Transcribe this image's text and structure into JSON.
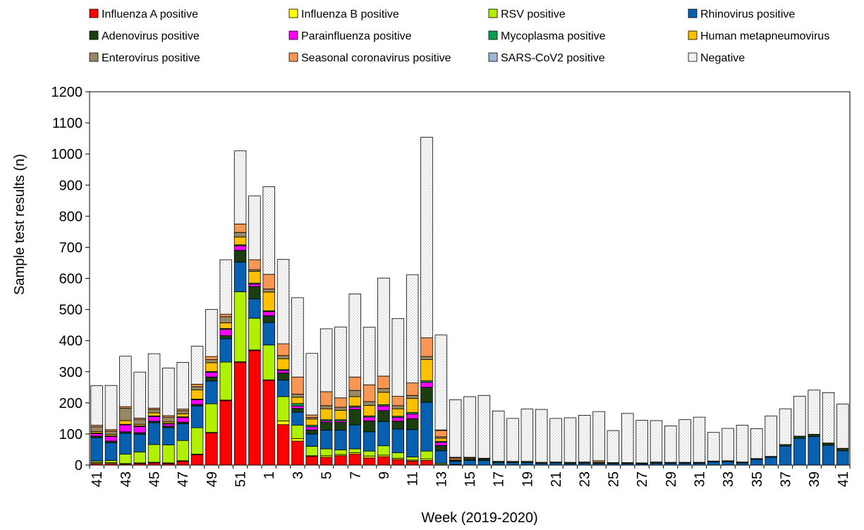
{
  "chart_data": {
    "type": "bar",
    "stacked": true,
    "xlabel": "Week (2019-2020)",
    "ylabel": "Sample test results (n)",
    "ylim": [
      0,
      1200
    ],
    "yticks": [
      0,
      100,
      200,
      300,
      400,
      500,
      600,
      700,
      800,
      900,
      1000,
      1100,
      1200
    ],
    "grid": false,
    "legend_position": "top",
    "categories": [
      "41",
      "42",
      "43",
      "44",
      "45",
      "46",
      "47",
      "48",
      "49",
      "50",
      "51",
      "52",
      "1",
      "2",
      "3",
      "4",
      "5",
      "6",
      "7",
      "8",
      "9",
      "10",
      "11",
      "12",
      "13",
      "14",
      "15",
      "16",
      "17",
      "18",
      "19",
      "20",
      "21",
      "22",
      "23",
      "24",
      "25",
      "26",
      "27",
      "28",
      "29",
      "30",
      "31",
      "32",
      "33",
      "34",
      "35",
      "36",
      "37",
      "38",
      "39",
      "40",
      "41"
    ],
    "tick_labels": [
      "41",
      "",
      "43",
      "",
      "45",
      "",
      "47",
      "",
      "49",
      "",
      "51",
      "",
      "1",
      "",
      "3",
      "",
      "5",
      "",
      "7",
      "",
      "9",
      "",
      "11",
      "",
      "13",
      "",
      "15",
      "",
      "17",
      "",
      "19",
      "",
      "21",
      "",
      "23",
      "",
      "25",
      "",
      "27",
      "",
      "29",
      "",
      "31",
      "",
      "33",
      "",
      "35",
      "",
      "37",
      "",
      "39",
      "",
      "41"
    ],
    "series": [
      {
        "name": "Influenza A positive",
        "color": "#ff0000",
        "values": [
          5,
          5,
          3,
          5,
          7,
          5,
          12,
          33,
          103,
          207,
          330,
          368,
          272,
          130,
          77,
          28,
          25,
          30,
          35,
          23,
          27,
          18,
          13,
          15,
          0,
          0,
          0,
          0,
          0,
          0,
          0,
          0,
          0,
          0,
          0,
          0,
          0,
          0,
          0,
          0,
          0,
          0,
          0,
          0,
          0,
          0,
          0,
          0,
          0,
          0,
          0,
          0,
          0
        ]
      },
      {
        "name": "Influenza B positive",
        "color": "#ffff00",
        "values": [
          3,
          3,
          2,
          2,
          2,
          2,
          2,
          2,
          2,
          2,
          2,
          2,
          2,
          12,
          8,
          2,
          5,
          4,
          5,
          6,
          5,
          4,
          3,
          5,
          2,
          0,
          0,
          0,
          0,
          0,
          0,
          0,
          0,
          0,
          0,
          0,
          0,
          0,
          0,
          0,
          0,
          0,
          0,
          0,
          0,
          0,
          0,
          0,
          0,
          0,
          0,
          0,
          0
        ]
      },
      {
        "name": "RSV positive",
        "color": "#b0f000",
        "values": [
          5,
          7,
          30,
          35,
          57,
          58,
          65,
          85,
          92,
          122,
          225,
          102,
          112,
          78,
          43,
          30,
          22,
          15,
          12,
          16,
          30,
          18,
          10,
          25,
          4,
          2,
          0,
          0,
          0,
          0,
          0,
          0,
          0,
          0,
          0,
          0,
          0,
          0,
          0,
          0,
          0,
          0,
          0,
          0,
          0,
          0,
          0,
          0,
          0,
          0,
          0,
          0,
          0
        ]
      },
      {
        "name": "Rhinovirus positive",
        "color": "#0760b0",
        "values": [
          75,
          57,
          67,
          57,
          70,
          55,
          54,
          70,
          73,
          75,
          95,
          62,
          72,
          53,
          42,
          40,
          60,
          63,
          77,
          62,
          78,
          76,
          88,
          157,
          40,
          10,
          15,
          15,
          8,
          8,
          8,
          6,
          7,
          5,
          6,
          5,
          5,
          5,
          4,
          6,
          6,
          6,
          6,
          10,
          11,
          7,
          18,
          25,
          61,
          86,
          92,
          64,
          46
        ]
      },
      {
        "name": "Adenovirus positive",
        "color": "#1a3e10",
        "values": [
          5,
          5,
          5,
          5,
          5,
          5,
          5,
          5,
          13,
          10,
          38,
          40,
          22,
          23,
          12,
          13,
          25,
          25,
          50,
          35,
          35,
          25,
          35,
          48,
          17,
          3,
          5,
          5,
          4,
          4,
          4,
          3,
          3,
          4,
          4,
          4,
          3,
          3,
          3,
          4,
          3,
          3,
          3,
          3,
          3,
          3,
          3,
          3,
          5,
          7,
          7,
          7,
          8
        ]
      },
      {
        "name": "Parainfluenza positive",
        "color": "#ff00ff",
        "values": [
          8,
          15,
          22,
          20,
          15,
          7,
          15,
          15,
          15,
          20,
          15,
          8,
          13,
          8,
          8,
          10,
          5,
          5,
          7,
          12,
          15,
          12,
          15,
          16,
          10,
          0,
          0,
          0,
          0,
          0,
          0,
          0,
          0,
          0,
          0,
          0,
          0,
          0,
          0,
          0,
          0,
          0,
          0,
          0,
          0,
          0,
          0,
          0,
          0,
          0,
          0,
          0,
          0
        ]
      },
      {
        "name": "Mycoplasma positive",
        "color": "#00a050",
        "values": [
          2,
          2,
          2,
          2,
          2,
          2,
          2,
          2,
          3,
          3,
          3,
          3,
          3,
          3,
          8,
          5,
          4,
          4,
          4,
          4,
          4,
          4,
          5,
          5,
          3,
          0,
          0,
          0,
          0,
          0,
          0,
          0,
          0,
          0,
          0,
          0,
          0,
          0,
          0,
          0,
          0,
          0,
          0,
          0,
          0,
          0,
          0,
          0,
          0,
          0,
          0,
          0,
          0
        ]
      },
      {
        "name": "Human metapneumovirus",
        "color": "#ffc000",
        "values": [
          5,
          5,
          12,
          5,
          10,
          5,
          10,
          30,
          28,
          18,
          25,
          38,
          60,
          35,
          20,
          20,
          35,
          30,
          30,
          34,
          40,
          24,
          45,
          68,
          10,
          3,
          3,
          0,
          0,
          0,
          0,
          0,
          0,
          0,
          0,
          0,
          0,
          0,
          0,
          0,
          0,
          0,
          0,
          0,
          0,
          0,
          0,
          0,
          0,
          0,
          0,
          0,
          0
        ]
      },
      {
        "name": "Enterovirus positive",
        "color": "#978a62",
        "values": [
          15,
          10,
          40,
          15,
          10,
          15,
          10,
          10,
          10,
          20,
          15,
          5,
          10,
          10,
          10,
          5,
          10,
          10,
          20,
          12,
          12,
          10,
          10,
          10,
          5,
          0,
          0,
          0,
          0,
          0,
          0,
          0,
          0,
          0,
          0,
          0,
          0,
          0,
          0,
          0,
          0,
          0,
          0,
          0,
          0,
          0,
          0,
          0,
          0,
          0,
          0,
          0,
          0
        ]
      },
      {
        "name": "Seasonal coronavirus positive",
        "color": "#f89653",
        "values": [
          5,
          5,
          5,
          5,
          5,
          5,
          5,
          8,
          10,
          8,
          27,
          32,
          47,
          38,
          55,
          8,
          45,
          30,
          43,
          54,
          40,
          30,
          40,
          60,
          20,
          5,
          0,
          0,
          0,
          0,
          0,
          0,
          0,
          0,
          0,
          5,
          0,
          0,
          0,
          0,
          0,
          0,
          0,
          0,
          0,
          0,
          0,
          0,
          0,
          0,
          0,
          0,
          0
        ]
      },
      {
        "name": "SARS-CoV2 positive",
        "color": "#9fb5dc",
        "values": [
          0,
          0,
          0,
          0,
          0,
          0,
          0,
          0,
          0,
          0,
          0,
          0,
          0,
          0,
          0,
          0,
          0,
          0,
          0,
          0,
          0,
          0,
          0,
          0,
          2,
          2,
          2,
          2,
          0,
          0,
          0,
          0,
          0,
          0,
          0,
          0,
          0,
          0,
          0,
          0,
          0,
          0,
          0,
          0,
          0,
          0,
          0,
          0,
          0,
          0,
          0,
          0,
          0
        ]
      },
      {
        "name": "Negative",
        "color": "#f2f2f2",
        "values": [
          127,
          142,
          162,
          148,
          175,
          153,
          150,
          122,
          151,
          175,
          235,
          205,
          282,
          271,
          255,
          198,
          202,
          228,
          267,
          185,
          315,
          250,
          348,
          645,
          305,
          185,
          195,
          202,
          162,
          138,
          168,
          170,
          140,
          143,
          150,
          158,
          103,
          158,
          137,
          133,
          117,
          137,
          145,
          92,
          104,
          118,
          96,
          130,
          115,
          128,
          142,
          162,
          142
        ]
      }
    ]
  }
}
